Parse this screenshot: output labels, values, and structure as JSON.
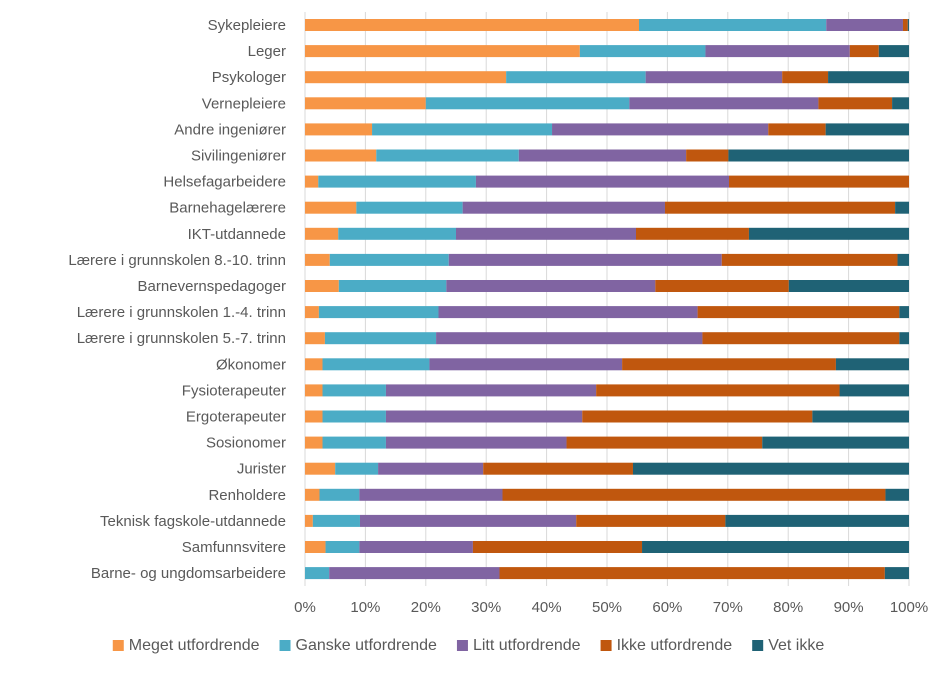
{
  "chart_data": {
    "type": "bar",
    "orientation": "horizontal",
    "stacked": "percent",
    "title": "",
    "xlabel": "",
    "ylabel": "",
    "xlim": [
      0,
      100
    ],
    "x_ticks": [
      "0%",
      "10%",
      "20%",
      "30%",
      "40%",
      "50%",
      "60%",
      "70%",
      "80%",
      "90%",
      "100%"
    ],
    "grid": true,
    "legend_position": "bottom",
    "categories": [
      "Sykepleiere",
      "Leger",
      "Psykologer",
      "Vernepleiere",
      "Andre ingeniører",
      "Sivilingeniører",
      "Helsefagarbeidere",
      "Barnehagelærere",
      "IKT-utdannede",
      "Lærere i grunnskolen 8.-10. trinn",
      "Barnevernspedagoger",
      "Lærere i grunnskolen 1.-4. trinn",
      "Lærere i grunnskolen 5.-7. trinn",
      "Økonomer",
      "Fysioterapeuter",
      "Ergoterapeuter",
      "Sosionomer",
      "Jurister",
      "Renholdere",
      "Teknisk fagskole-utdannede",
      "Samfunnsvitere",
      "Barne- og ungdomsarbeidere"
    ],
    "series": [
      {
        "name": "Meget utfordrende",
        "color": "#F79646",
        "values": [
          55.3,
          45.5,
          33.3,
          20.0,
          11.1,
          11.8,
          2.2,
          8.5,
          5.5,
          4.1,
          5.6,
          2.3,
          3.3,
          2.9,
          2.9,
          2.9,
          2.9,
          5.0,
          2.4,
          1.3,
          3.4,
          0.0
        ]
      },
      {
        "name": "Ganske utfordrende",
        "color": "#4BACC6",
        "values": [
          31.0,
          20.8,
          23.1,
          33.7,
          29.8,
          23.6,
          26.1,
          17.6,
          19.5,
          19.7,
          17.8,
          19.8,
          18.4,
          17.7,
          10.5,
          10.5,
          10.5,
          7.1,
          6.6,
          7.8,
          5.6,
          4.0
        ]
      },
      {
        "name": "Litt utfordrende",
        "color": "#8064A2",
        "values": [
          12.7,
          23.9,
          22.6,
          31.3,
          35.8,
          27.7,
          41.9,
          33.5,
          29.8,
          45.2,
          34.6,
          42.9,
          44.1,
          31.9,
          34.8,
          32.5,
          29.9,
          17.4,
          23.7,
          35.8,
          18.8,
          28.2
        ]
      },
      {
        "name": "Ikke utfordrende",
        "color": "#C0570E",
        "values": [
          0.8,
          4.8,
          7.6,
          12.2,
          9.5,
          7.0,
          29.8,
          38.1,
          18.7,
          29.1,
          22.1,
          33.4,
          32.6,
          35.4,
          40.3,
          38.1,
          32.4,
          24.8,
          63.4,
          24.7,
          28.0,
          63.8
        ]
      },
      {
        "name": "Vet ikke",
        "color": "#1F6275",
        "values": [
          0.2,
          5.0,
          13.4,
          2.8,
          13.8,
          29.9,
          0.0,
          2.3,
          26.5,
          1.9,
          19.9,
          1.6,
          1.6,
          12.1,
          11.5,
          16.0,
          24.3,
          45.7,
          3.9,
          30.4,
          44.2,
          4.0
        ]
      }
    ]
  }
}
